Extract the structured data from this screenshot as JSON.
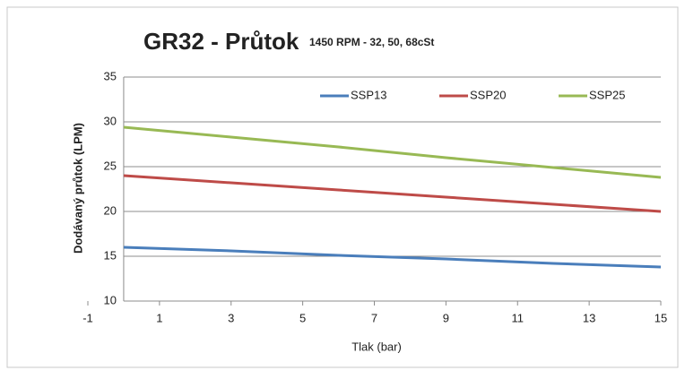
{
  "chart_data": {
    "type": "line",
    "title": "GR32 - Průtok",
    "subtitle": "1450 RPM - 32, 50, 68cSt",
    "x_label": "Tlak (bar)",
    "y_label": "Dodávaný průtok (LPM)",
    "x": [
      0,
      3,
      6,
      9,
      12,
      15
    ],
    "series": [
      {
        "name": "SSP13",
        "color": "#4a7ebb",
        "values": [
          16,
          15.6,
          15.1,
          14.7,
          14.2,
          13.8
        ]
      },
      {
        "name": "SSP20",
        "color": "#be4b48",
        "values": [
          24,
          23.2,
          22.4,
          21.6,
          20.8,
          20
        ]
      },
      {
        "name": "SSP25",
        "color": "#98b954",
        "values": [
          29.4,
          28.3,
          27.2,
          26.0,
          24.9,
          23.8
        ]
      }
    ],
    "xlim": [
      -1,
      15
    ],
    "xticks": [
      -1,
      1,
      3,
      5,
      7,
      9,
      11,
      13,
      15
    ],
    "ylim": [
      10,
      35
    ],
    "yticks": [
      10,
      15,
      20,
      25,
      30,
      35
    ],
    "grid": true,
    "legend": "top"
  }
}
